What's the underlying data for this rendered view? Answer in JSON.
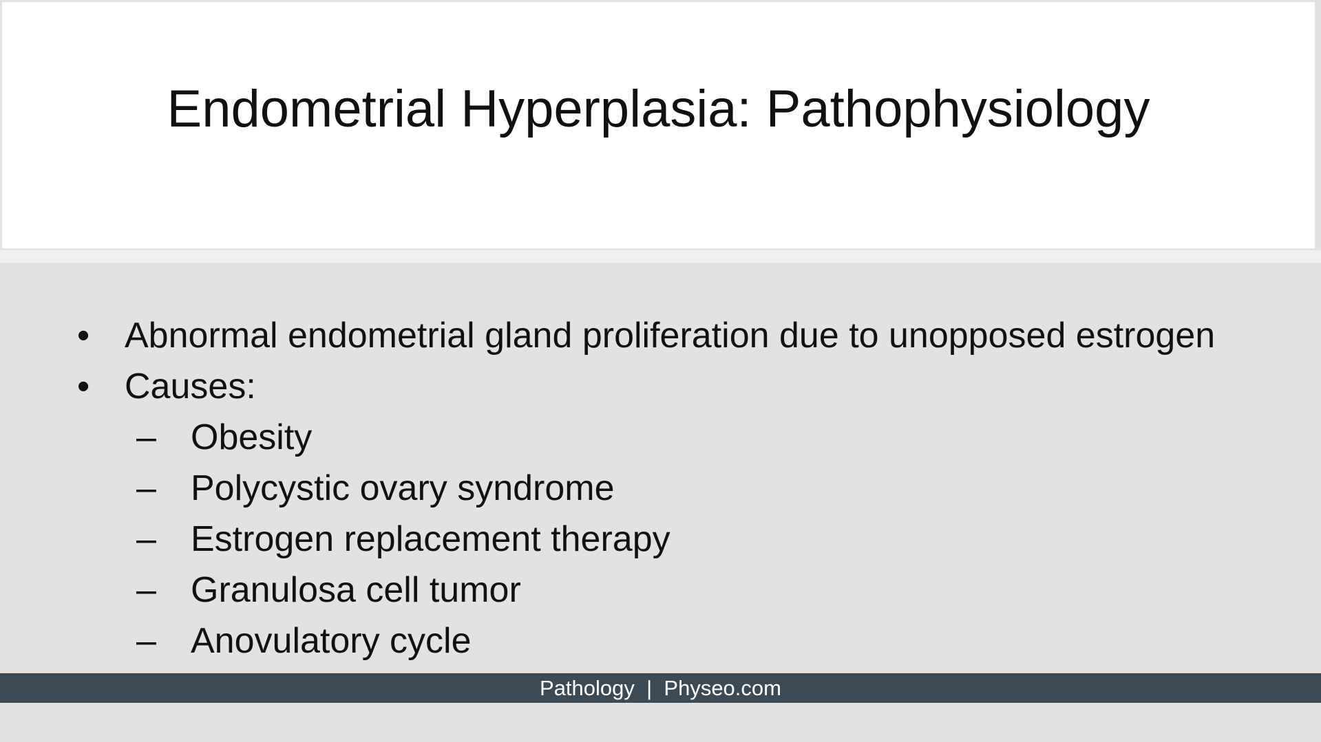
{
  "slide": {
    "title": "Endometrial Hyperplasia: Pathophysiology",
    "bullets": [
      {
        "marker": "•",
        "text": "Abnormal endometrial gland proliferation due to unopposed estrogen"
      },
      {
        "marker": "•",
        "text": "Causes:"
      }
    ],
    "sub_bullets": [
      {
        "marker": "–",
        "text": "Obesity"
      },
      {
        "marker": "–",
        "text": "Polycystic ovary syndrome"
      },
      {
        "marker": "–",
        "text": "Estrogen replacement therapy"
      },
      {
        "marker": "–",
        "text": "Granulosa cell tumor"
      },
      {
        "marker": "–",
        "text": "Anovulatory cycle"
      }
    ],
    "footer": "Pathology  |  Physeo.com"
  }
}
